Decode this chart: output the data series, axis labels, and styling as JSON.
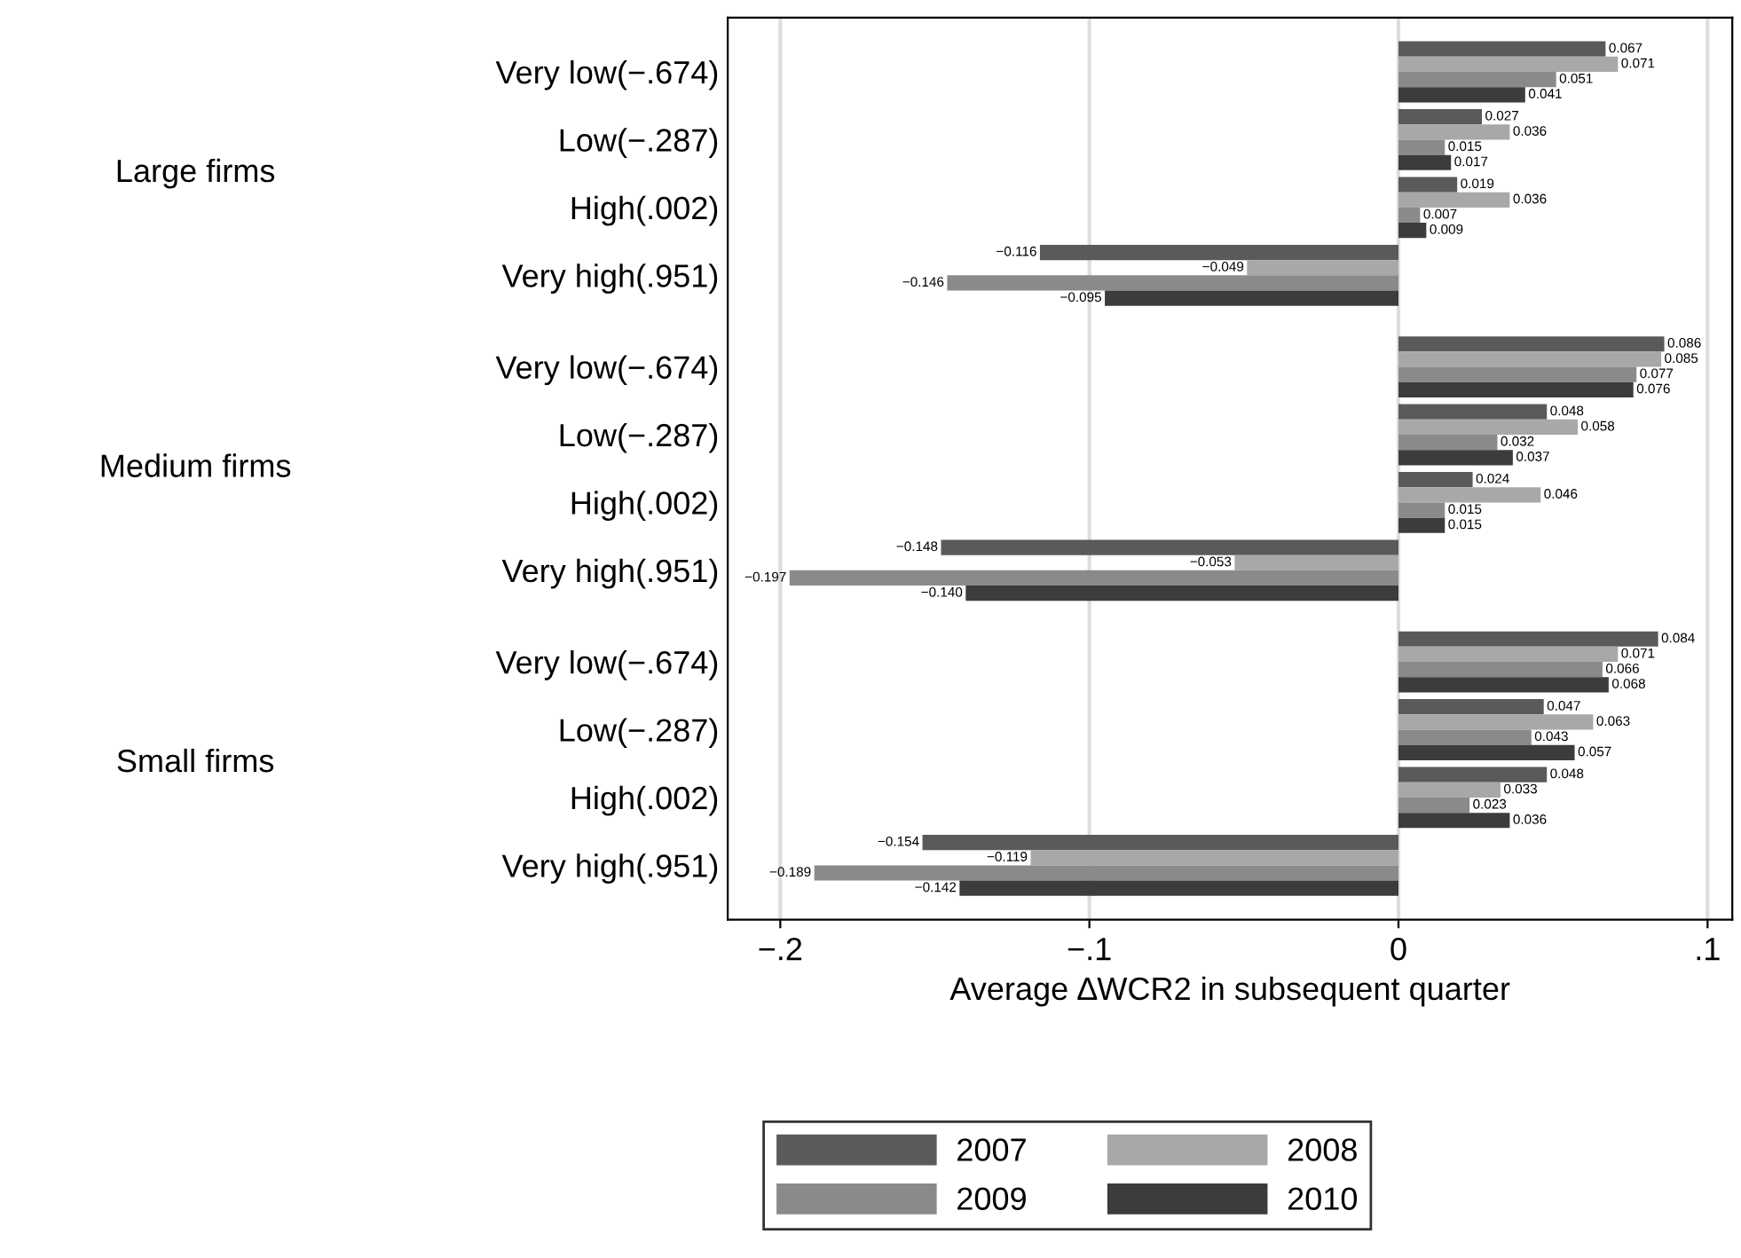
{
  "chart_data": {
    "type": "bar",
    "orientation": "horizontal",
    "xlabel": "Average ∆WCR2 in subsequent quarter",
    "categories": [
      "Very low(−.674)",
      "Low(−.287)",
      "High(.002)",
      "Very high(.951)",
      "Very low(−.674)",
      "Low(−.287)",
      "High(.002)",
      "Very high(.951)",
      "Very low(−.674)",
      "Low(−.287)",
      "High(.002)",
      "Very high(.951)"
    ],
    "annotations": [
      "Large firms",
      "Medium firms",
      "Small firms"
    ],
    "series": [
      {
        "name": "2007",
        "color": "#5a5a5a",
        "values": [
          0.067,
          0.027,
          0.019,
          -0.116,
          0.086,
          0.048,
          0.024,
          -0.148,
          0.084,
          0.047,
          0.048,
          -0.154
        ],
        "value_labels": [
          "0.067",
          "0.027",
          "0.019",
          "−0.116",
          "0.086",
          "0.048",
          "0.024",
          "−0.148",
          "0.084",
          "0.047",
          "0.048",
          "−0.154"
        ]
      },
      {
        "name": "2008",
        "color": "#a8a8a8",
        "values": [
          0.071,
          0.036,
          0.036,
          -0.049,
          0.085,
          0.058,
          0.046,
          -0.053,
          0.071,
          0.063,
          0.033,
          -0.119
        ],
        "value_labels": [
          "0.071",
          "0.036",
          "0.036",
          "−0.049",
          "0.085",
          "0.058",
          "0.046",
          "−0.053",
          "0.071",
          "0.063",
          "0.033",
          "−0.119"
        ]
      },
      {
        "name": "2009",
        "color": "#8a8a8a",
        "values": [
          0.051,
          0.015,
          0.007,
          -0.146,
          0.077,
          0.032,
          0.015,
          -0.197,
          0.066,
          0.043,
          0.023,
          -0.189
        ],
        "value_labels": [
          "0.051",
          "0.015",
          "0.007",
          "−0.146",
          "0.077",
          "0.032",
          "0.015",
          "−0.197",
          "0.066",
          "0.043",
          "0.023",
          "−0.189"
        ]
      },
      {
        "name": "2010",
        "color": "#3c3c3c",
        "values": [
          0.041,
          0.017,
          0.009,
          -0.095,
          0.076,
          0.037,
          0.015,
          -0.14,
          0.068,
          0.057,
          0.036,
          -0.142
        ],
        "value_labels": [
          "0.041",
          "0.017",
          "0.009",
          "−0.095",
          "0.076",
          "0.037",
          "0.015",
          "−0.140",
          "0.068",
          "0.057",
          "0.036",
          "−0.142"
        ]
      }
    ],
    "xlim": [
      -0.217,
      0.108
    ],
    "xticks": [
      {
        "value": -0.2,
        "label": "−.2"
      },
      {
        "value": -0.1,
        "label": "−.1"
      },
      0,
      {
        "value": 0.1,
        "label": ".1"
      }
    ],
    "grid": "x",
    "legend": "bottom"
  }
}
